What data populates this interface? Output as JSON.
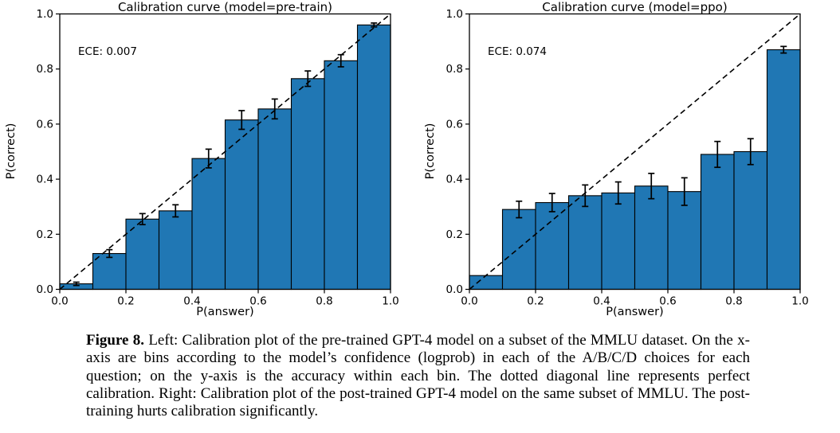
{
  "figure": {
    "caption_label": "Figure 8.",
    "caption_text": " Left: Calibration plot of the pre-trained GPT-4 model on a subset of the MMLU dataset. On the x-axis are bins according to the model’s confidence (logprob) in each of the A/B/C/D choices for each question; on the y-axis is the accuracy within each bin. The dotted diagonal line represents perfect calibration. Right: Calibration plot of the post-trained GPT-4 model on the same subset of MMLU. The post-training hurts calibration significantly."
  },
  "colors": {
    "background": "#ffffff",
    "bar_fill": "#2077b4",
    "bar_edge": "#000000",
    "diagonal_line": "#000000",
    "error_bar": "#000000",
    "axis": "#000000",
    "text": "#000000"
  },
  "chart_data": [
    {
      "type": "bar",
      "panel": "left",
      "title": "Calibration curve (model=pre-train)",
      "annotation": "ECE: 0.007",
      "xlabel": "P(answer)",
      "ylabel": "P(correct)",
      "xlim": [
        0.0,
        1.0
      ],
      "ylim": [
        0.0,
        1.0
      ],
      "xticks": [
        "0.0",
        "0.2",
        "0.4",
        "0.6",
        "0.8",
        "1.0"
      ],
      "yticks": [
        "0.0",
        "0.2",
        "0.4",
        "0.6",
        "0.8",
        "1.0"
      ],
      "grid": false,
      "legend_position": "none",
      "reference_line": "y=x dashed (perfect calibration)",
      "bin_width": 0.1,
      "bin_centers": [
        0.05,
        0.15,
        0.25,
        0.35,
        0.45,
        0.55,
        0.65,
        0.75,
        0.85,
        0.95
      ],
      "values": [
        0.02,
        0.13,
        0.255,
        0.285,
        0.475,
        0.615,
        0.655,
        0.765,
        0.83,
        0.96
      ],
      "errors": [
        0.006,
        0.014,
        0.02,
        0.022,
        0.034,
        0.034,
        0.036,
        0.028,
        0.022,
        0.007
      ]
    },
    {
      "type": "bar",
      "panel": "right",
      "title": "Calibration curve (model=ppo)",
      "annotation": "ECE: 0.074",
      "xlabel": "P(answer)",
      "ylabel": "P(correct)",
      "xlim": [
        0.0,
        1.0
      ],
      "ylim": [
        0.0,
        1.0
      ],
      "xticks": [
        "0.0",
        "0.2",
        "0.4",
        "0.6",
        "0.8",
        "1.0"
      ],
      "yticks": [
        "0.0",
        "0.2",
        "0.4",
        "0.6",
        "0.8",
        "1.0"
      ],
      "grid": false,
      "legend_position": "none",
      "reference_line": "y=x dashed (perfect calibration)",
      "bin_width": 0.1,
      "bin_centers": [
        0.05,
        0.15,
        0.25,
        0.35,
        0.45,
        0.55,
        0.65,
        0.75,
        0.85,
        0.95
      ],
      "values": [
        0.05,
        0.29,
        0.315,
        0.34,
        0.35,
        0.375,
        0.355,
        0.49,
        0.5,
        0.87
      ],
      "errors": [
        0,
        0.03,
        0.033,
        0.039,
        0.04,
        0.046,
        0.05,
        0.047,
        0.047,
        0.012
      ]
    }
  ]
}
